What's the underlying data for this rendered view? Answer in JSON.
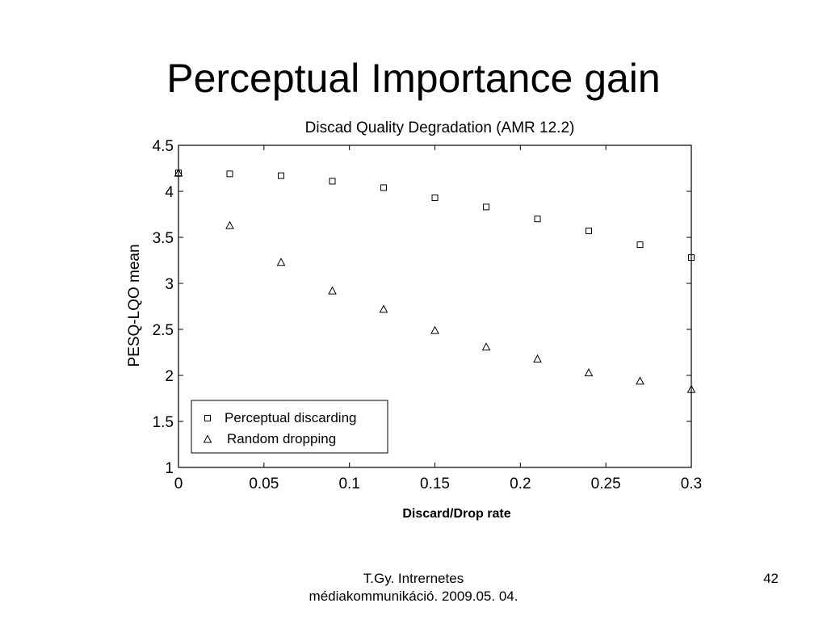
{
  "slide": {
    "title": "Perceptual Importance gain",
    "footer_line1": "T.Gy. Intrernetes",
    "footer_line2": "médiakommunikáció. 2009.05. 04.",
    "page_number": "42"
  },
  "chart_data": {
    "type": "scatter",
    "title": "Discad Quality Degradation (AMR 12.2)",
    "xlabel": "Discard/Drop rate",
    "ylabel": "PESQ-LQO mean",
    "xlim": [
      0,
      0.3
    ],
    "ylim": [
      1,
      4.5
    ],
    "xticks": [
      "0",
      "0.05",
      "0.1",
      "0.15",
      "0.2",
      "0.25",
      "0.3"
    ],
    "yticks": [
      "1",
      "1.5",
      "2",
      "2.5",
      "3",
      "3.5",
      "4",
      "4.5"
    ],
    "grid": false,
    "legend_position": "bottom-left",
    "series": [
      {
        "name": "Perceptual discarding",
        "marker": "square",
        "x": [
          0,
          0.03,
          0.06,
          0.09,
          0.12,
          0.15,
          0.18,
          0.21,
          0.24,
          0.27,
          0.3
        ],
        "y": [
          4.2,
          4.19,
          4.17,
          4.11,
          4.04,
          3.93,
          3.83,
          3.7,
          3.57,
          3.42,
          3.28
        ]
      },
      {
        "name": "Random dropping",
        "marker": "triangle",
        "x": [
          0,
          0.03,
          0.06,
          0.09,
          0.12,
          0.15,
          0.18,
          0.21,
          0.24,
          0.27,
          0.3
        ],
        "y": [
          4.2,
          3.63,
          3.23,
          2.92,
          2.72,
          2.49,
          2.31,
          2.18,
          2.03,
          1.94,
          1.85
        ]
      }
    ]
  }
}
